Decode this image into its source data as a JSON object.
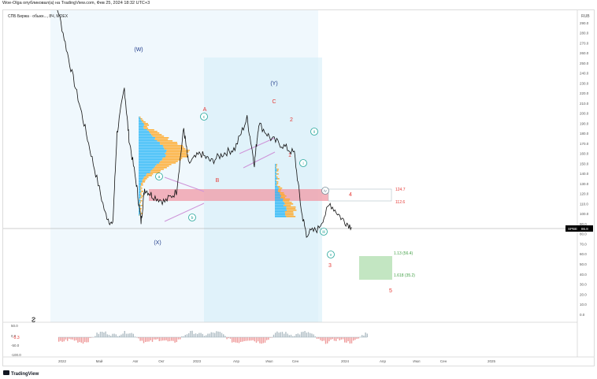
{
  "header": {
    "publisher_line": "Woe-Olga опубликовал(а) на TradingView.com, Фев 25, 2024 18:32 UTC+3"
  },
  "symbol": {
    "title": "СПБ Биржа · обыкн..., 8Ч, MOEX"
  },
  "price_axis": {
    "currency": "RUB",
    "ticks": [
      "290.0",
      "280.0",
      "270.0",
      "260.0",
      "250.0",
      "240.0",
      "230.0",
      "220.0",
      "210.0",
      "200.0",
      "190.0",
      "180.0",
      "170.0",
      "160.0",
      "150.0",
      "140.0",
      "130.0",
      "120.0",
      "110.0",
      "100.0",
      "90.0",
      "80.0",
      "70.0",
      "60.0",
      "50.0",
      "40.0",
      "30.0",
      "20.0",
      "10.0",
      "0.0"
    ],
    "last_label": "SPBE",
    "last_value": "86.8"
  },
  "time_axis": {
    "ticks": [
      "2022",
      "Май",
      "Авг",
      "Окт",
      "2023",
      "Апр",
      "Июл",
      "Сен",
      "2024",
      "Апр",
      "Июл",
      "Сен",
      "2025"
    ]
  },
  "oscillator": {
    "ticks": [
      "50.0",
      "0.0",
      "-50.0",
      "-100.0"
    ],
    "current": "-5.3"
  },
  "wave_labels": [
    {
      "text": "(W)",
      "color": "#1e3a8a"
    },
    {
      "text": "(X)",
      "color": "#1e3a8a"
    },
    {
      "text": "(Y)",
      "color": "#1e3a8a"
    },
    {
      "text": "A",
      "color": "#e53935"
    },
    {
      "text": "B",
      "color": "#e53935"
    },
    {
      "text": "C",
      "color": "#e53935"
    },
    {
      "text": "1",
      "color": "#e53935"
    },
    {
      "text": "2",
      "color": "#e53935"
    },
    {
      "text": "3",
      "color": "#e53935"
    },
    {
      "text": "4",
      "color": "#e53935"
    },
    {
      "text": "5",
      "color": "#e53935"
    },
    {
      "text": "a",
      "color": "#26a69a"
    },
    {
      "text": "b",
      "color": "#26a69a"
    },
    {
      "text": "c",
      "color": "#26a69a"
    },
    {
      "text": "i",
      "color": "#26a69a"
    },
    {
      "text": "ii",
      "color": "#26a69a"
    },
    {
      "text": "iii",
      "color": "#26a69a"
    },
    {
      "text": "iv",
      "color": "#78909c"
    },
    {
      "text": "v",
      "color": "#26a69a"
    }
  ],
  "zone_labels": {
    "upper": "124.7",
    "lower": "112.6",
    "fib1": "1.13 (56.4)",
    "fib2": "1.618 (35.2)"
  },
  "footer": {
    "brand": "TradingView"
  },
  "chart_data": {
    "type": "line",
    "series": [
      {
        "values": [
          {
            "x": "2022-01",
            "y": 330
          },
          {
            "x": "2022-02",
            "y": 300
          },
          {
            "x": "2022-03",
            "y": 250
          },
          {
            "x": "2022-04",
            "y": 200
          },
          {
            "x": "2022-05",
            "y": 150
          },
          {
            "x": "2022-06",
            "y": 100
          },
          {
            "x": "2022-06-20",
            "y": 88
          },
          {
            "x": "2022-07",
            "y": 180
          },
          {
            "x": "2022-07-20",
            "y": 225
          },
          {
            "x": "2022-08",
            "y": 175
          },
          {
            "x": "2022-08-20",
            "y": 130
          },
          {
            "x": "2022-09",
            "y": 92
          },
          {
            "x": "2022-09-10",
            "y": 125
          },
          {
            "x": "2022-10",
            "y": 118
          },
          {
            "x": "2022-11",
            "y": 112
          },
          {
            "x": "2022-12",
            "y": 122
          },
          {
            "x": "2022-12-20",
            "y": 185
          },
          {
            "x": "2023-01",
            "y": 150
          },
          {
            "x": "2023-02",
            "y": 160
          },
          {
            "x": "2023-03",
            "y": 152
          },
          {
            "x": "2023-04",
            "y": 160
          },
          {
            "x": "2023-05",
            "y": 165
          },
          {
            "x": "2023-06",
            "y": 195
          },
          {
            "x": "2023-06-20",
            "y": 150
          },
          {
            "x": "2023-07",
            "y": 190
          },
          {
            "x": "2023-08",
            "y": 175
          },
          {
            "x": "2023-09",
            "y": 168
          },
          {
            "x": "2023-10",
            "y": 160
          },
          {
            "x": "2023-10-20",
            "y": 100
          },
          {
            "x": "2023-11",
            "y": 80
          },
          {
            "x": "2023-12",
            "y": 85
          },
          {
            "x": "2024-01",
            "y": 110
          },
          {
            "x": "2024-02",
            "y": 95
          },
          {
            "x": "2024-02-25",
            "y": 86.8
          }
        ]
      }
    ],
    "ylim": [
      0,
      295
    ],
    "xlabel": "",
    "ylabel": "RUB",
    "resistance_zone": [
      112.6,
      124.7
    ],
    "fib_targets": [
      56.4,
      35.2
    ]
  }
}
